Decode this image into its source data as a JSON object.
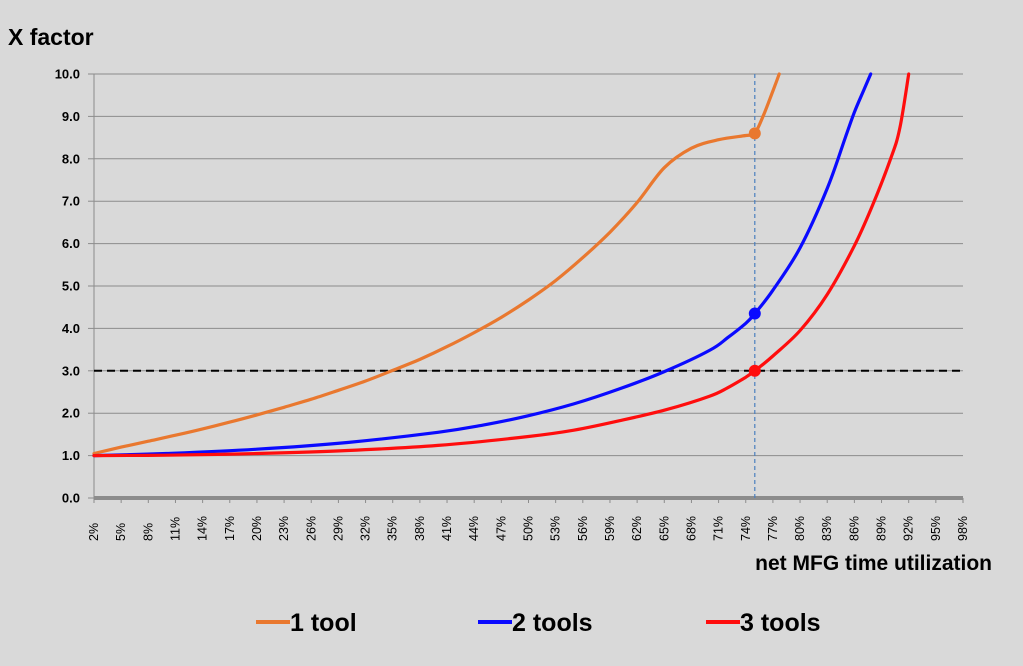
{
  "chart_data": {
    "type": "line",
    "title": "",
    "ylabel": "X factor",
    "xlabel": "net MFG time utilization",
    "ylim": [
      0,
      10
    ],
    "y_ticks": [
      "0.0",
      "1.0",
      "2.0",
      "3.0",
      "4.0",
      "5.0",
      "6.0",
      "7.0",
      "8.0",
      "9.0",
      "10.0"
    ],
    "x_ticks": [
      "2%",
      "5%",
      "8%",
      "11%",
      "14%",
      "17%",
      "20%",
      "23%",
      "26%",
      "29%",
      "32%",
      "35%",
      "38%",
      "41%",
      "44%",
      "47%",
      "50%",
      "53%",
      "56%",
      "59%",
      "62%",
      "65%",
      "68%",
      "71%",
      "74%",
      "77%",
      "80%",
      "83%",
      "86%",
      "89%",
      "92%",
      "95%",
      "98%"
    ],
    "xlim": [
      2,
      98
    ],
    "series": [
      {
        "name": "1 tool",
        "color": "#e9782f",
        "x": [
          2,
          5,
          8,
          11,
          14,
          17,
          20,
          23,
          26,
          29,
          32,
          35,
          38,
          41,
          44,
          47,
          50,
          53,
          56,
          59,
          62,
          65,
          68,
          71,
          74,
          75,
          76,
          77,
          77.7
        ],
        "y": [
          1.05,
          1.2,
          1.34,
          1.48,
          1.63,
          1.79,
          1.96,
          2.14,
          2.33,
          2.54,
          2.76,
          3.01,
          3.27,
          3.57,
          3.9,
          4.26,
          4.67,
          5.13,
          5.67,
          6.27,
          6.97,
          7.79,
          8.25,
          8.45,
          8.55,
          8.6,
          9.05,
          9.6,
          10.0
        ]
      },
      {
        "name": "2 tools",
        "color": "#0a0aff",
        "x": [
          2,
          10,
          20,
          30,
          40,
          45,
          50,
          55,
          60,
          65,
          70,
          72,
          74,
          75,
          77,
          80,
          83,
          85,
          86,
          87,
          87.8
        ],
        "y": [
          1.0,
          1.05,
          1.15,
          1.31,
          1.55,
          1.72,
          1.94,
          2.22,
          2.57,
          2.98,
          3.48,
          3.78,
          4.12,
          4.35,
          4.9,
          5.9,
          7.3,
          8.5,
          9.1,
          9.6,
          10.0
        ]
      },
      {
        "name": "3 tools",
        "color": "#ff0d0d",
        "x": [
          2,
          10,
          20,
          30,
          40,
          50,
          55,
          60,
          65,
          70,
          72,
          74,
          75,
          77,
          80,
          83,
          86,
          88,
          90,
          91,
          92
        ],
        "y": [
          1.0,
          1.01,
          1.05,
          1.12,
          1.24,
          1.45,
          1.6,
          1.82,
          2.07,
          2.4,
          2.6,
          2.85,
          3.0,
          3.35,
          3.95,
          4.8,
          5.95,
          6.9,
          8.0,
          8.7,
          10.0
        ]
      }
    ],
    "markers": [
      {
        "series": "1 tool",
        "x": 75,
        "y": 8.6,
        "color": "#e9782f"
      },
      {
        "series": "2 tools",
        "x": 75,
        "y": 4.35,
        "color": "#0a0aff"
      },
      {
        "series": "3 tools",
        "x": 75,
        "y": 3.0,
        "color": "#ff0d0d"
      }
    ],
    "reference_lines": {
      "horizontal_y": 3.0,
      "horizontal_color": "#000000",
      "vertical_x": 75,
      "vertical_color": "#4a7fbf"
    },
    "grid": true,
    "legend_position": "bottom-center"
  }
}
